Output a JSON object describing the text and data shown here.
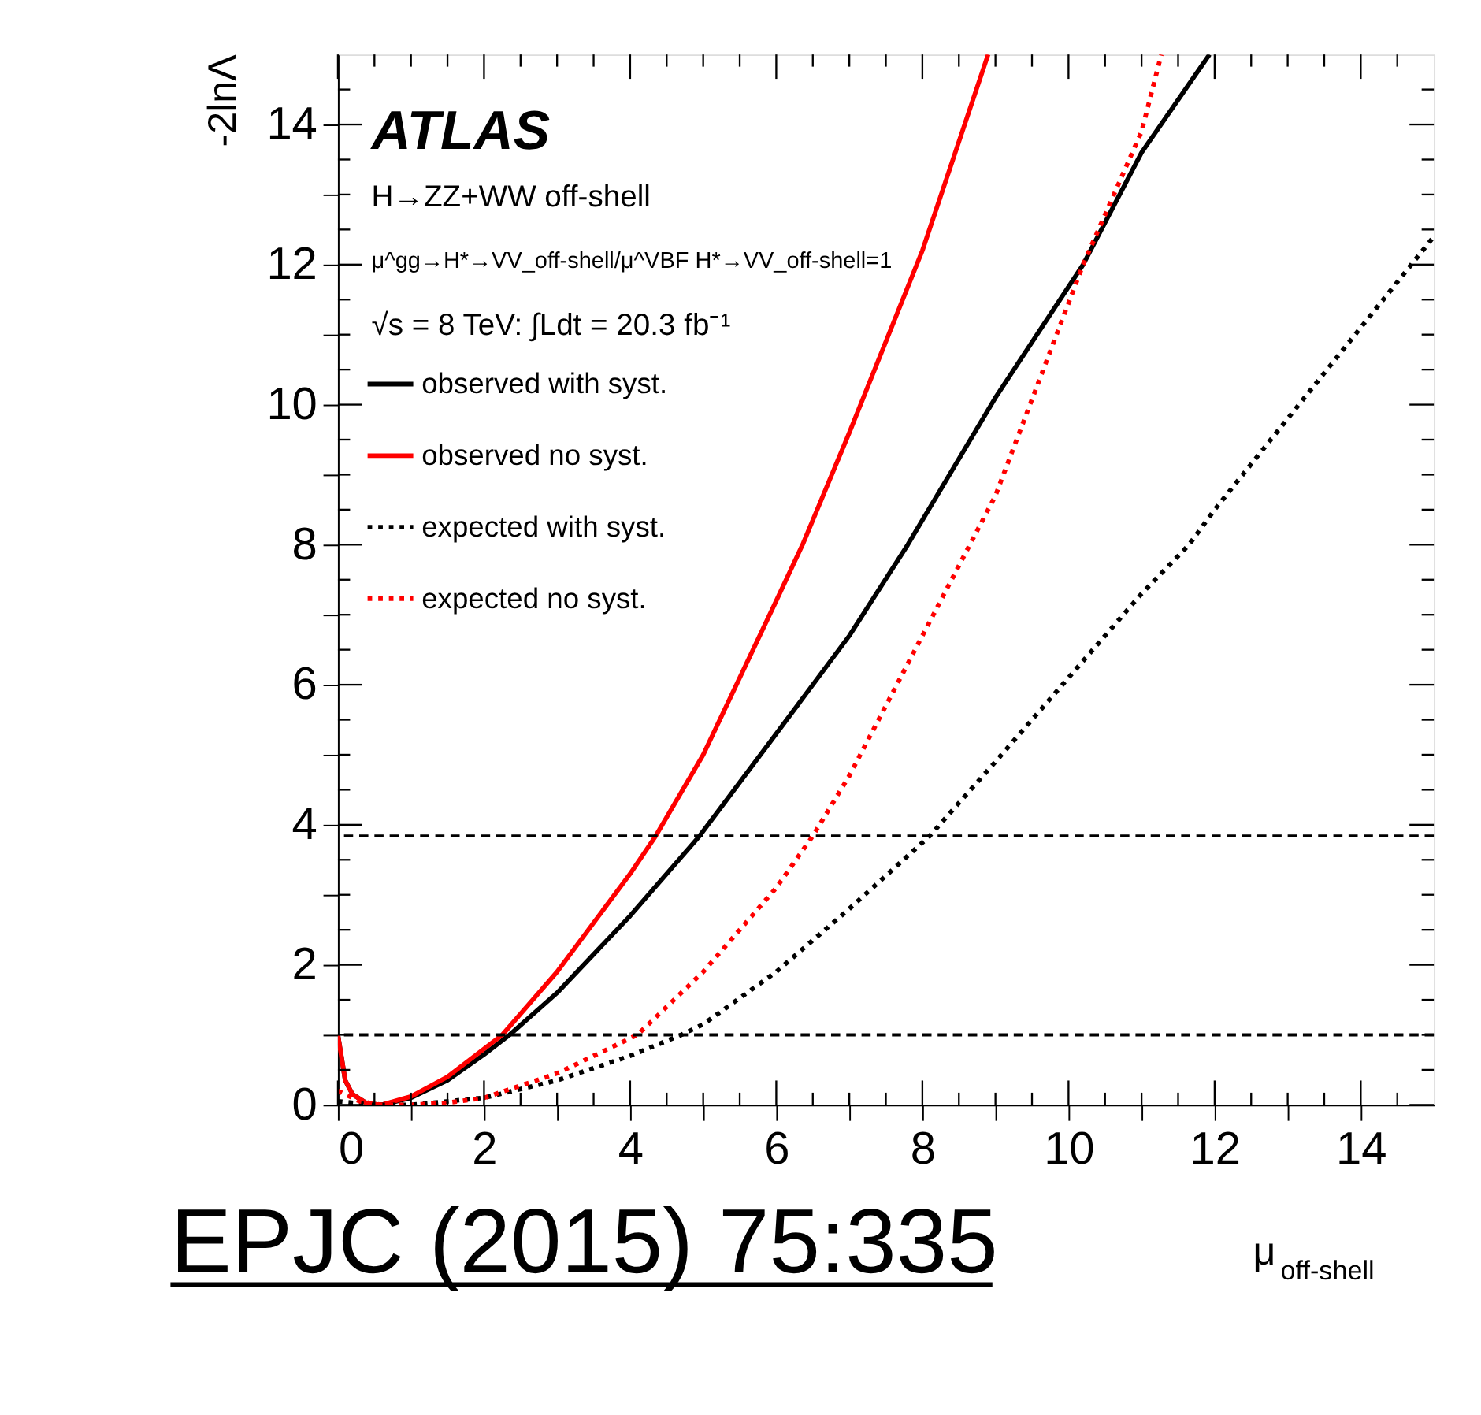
{
  "chart_data": {
    "type": "line",
    "xlabel": "μ$_{off-shell}$",
    "ylabel": "-2lnΛ",
    "xlim": [
      0,
      15
    ],
    "ylim": [
      0,
      15
    ],
    "xticks": [
      0,
      {
        "value": 0.5,
        "label": null
      },
      {
        "value": 1,
        "label": null
      },
      {
        "value": 1.5,
        "label": null
      },
      2,
      {
        "value": 2.5,
        "label": null
      },
      {
        "value": 3,
        "label": null
      },
      {
        "value": 3.5,
        "label": null
      },
      4,
      {
        "value": 4.5,
        "label": null
      },
      {
        "value": 5,
        "label": null
      },
      {
        "value": 5.5,
        "label": null
      },
      6,
      {
        "value": 6.5,
        "label": null
      },
      {
        "value": 7,
        "label": null
      },
      {
        "value": 7.5,
        "label": null
      },
      8,
      {
        "value": 8.5,
        "label": null
      },
      {
        "value": 9,
        "label": null
      },
      {
        "value": 9.5,
        "label": null
      },
      10,
      {
        "value": 10.5,
        "label": null
      },
      {
        "value": 11,
        "label": null
      },
      {
        "value": 11.5,
        "label": null
      },
      12,
      {
        "value": 12.5,
        "label": null
      },
      {
        "value": 13,
        "label": null
      },
      {
        "value": 13.5,
        "label": null
      },
      14,
      {
        "value": 14.5,
        "label": null
      }
    ],
    "yticks": [
      0,
      {
        "value": 0.5,
        "label": null
      },
      {
        "value": 1,
        "label": null
      },
      {
        "value": 1.5,
        "label": null
      },
      2,
      {
        "value": 2.5,
        "label": null
      },
      {
        "value": 3,
        "label": null
      },
      {
        "value": 3.5,
        "label": null
      },
      4,
      {
        "value": 4.5,
        "label": null
      },
      {
        "value": 5,
        "label": null
      },
      {
        "value": 5.5,
        "label": null
      },
      6,
      {
        "value": 6.5,
        "label": null
      },
      {
        "value": 7,
        "label": null
      },
      {
        "value": 7.5,
        "label": null
      },
      8,
      {
        "value": 8.5,
        "label": null
      },
      {
        "value": 9,
        "label": null
      },
      {
        "value": 9.5,
        "label": null
      },
      10,
      {
        "value": 10.5,
        "label": null
      },
      {
        "value": 11,
        "label": null
      },
      {
        "value": 11.5,
        "label": null
      },
      12,
      {
        "value": 12.5,
        "label": null
      },
      {
        "value": 13,
        "label": null
      },
      {
        "value": 13.5,
        "label": null
      },
      14,
      {
        "value": 14.5,
        "label": null
      }
    ],
    "grid": false,
    "legend": "top left",
    "annotations": [
      "ATLAS",
      "H→ZZ+WW off-shell",
      "μ^gg→H*→VV_off-shell/μ^VBF H*→VV_off-shell=1",
      "√s = 8 TeV: ∫Ldt = 20.3 fb⁻¹",
      "EPJC (2015) 75:335"
    ],
    "ref_lines": [
      {
        "axis": "y",
        "value": 1,
        "color": "#000000",
        "line_style": "dashed"
      },
      {
        "axis": "y",
        "value": 3.84,
        "color": "#000000",
        "line_style": "dashed"
      }
    ],
    "series": [
      {
        "name": "observed with syst.",
        "color": "#000000",
        "line_style": "solid",
        "x": [
          0,
          0.1,
          0.2,
          0.4,
          0.6,
          1,
          1.5,
          2,
          2.35,
          3,
          4,
          4.95,
          6,
          7,
          7.8,
          9,
          10.2,
          11,
          11.93
        ],
        "values": [
          1.0,
          0.35,
          0.15,
          0.02,
          0,
          0.1,
          0.35,
          0.72,
          1.0,
          1.6,
          2.7,
          3.84,
          5.3,
          6.7,
          8,
          10.1,
          12,
          13.6,
          15
        ]
      },
      {
        "name": "observed no syst.",
        "color": "#ff0000",
        "line_style": "solid",
        "x": [
          0,
          0.1,
          0.2,
          0.4,
          0.6,
          1,
          1.5,
          2,
          2.25,
          3,
          4,
          4.35,
          5,
          6,
          6.36,
          7,
          8,
          8.9
        ],
        "values": [
          1.0,
          0.35,
          0.15,
          0.02,
          0,
          0.12,
          0.4,
          0.8,
          1,
          1.9,
          3.3,
          3.84,
          5.0,
          7.2,
          8,
          9.6,
          12.2,
          15
        ]
      },
      {
        "name": "expected with syst.",
        "color": "#000000",
        "line_style": "dotted",
        "x": [
          0,
          0.5,
          1,
          2,
          3,
          4,
          4.7,
          5,
          6,
          7,
          8.1,
          9,
          10,
          11,
          11.65,
          12,
          13,
          14,
          15
        ],
        "values": [
          0.05,
          0,
          0,
          0.1,
          0.35,
          0.7,
          1,
          1.15,
          1.9,
          2.8,
          3.84,
          4.9,
          6.1,
          7.3,
          8,
          8.5,
          9.8,
          11.1,
          12.4
        ]
      },
      {
        "name": "expected no syst.",
        "color": "#ff0000",
        "line_style": "dotted",
        "x": [
          0,
          0.3,
          0.6,
          1,
          1.5,
          2,
          3,
          4.1,
          5,
          6,
          6.5,
          7,
          8,
          8.65,
          9,
          10.2,
          11,
          11.27
        ],
        "values": [
          0.2,
          0.05,
          0,
          0,
          0.03,
          0.1,
          0.45,
          1,
          1.9,
          3.1,
          3.84,
          4.7,
          6.7,
          8,
          8.7,
          12,
          13.9,
          15
        ]
      }
    ]
  }
}
